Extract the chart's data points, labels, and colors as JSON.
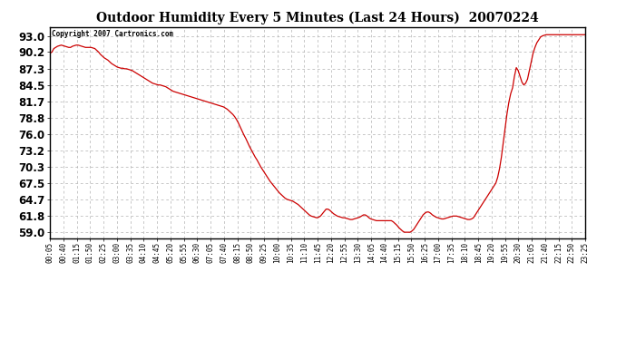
{
  "title": "Outdoor Humidity Every 5 Minutes (Last 24 Hours)  20070224",
  "copyright": "Copyright 2007 Cartronics.com",
  "line_color": "#cc0000",
  "background_color": "#ffffff",
  "grid_color": "#b0b0b0",
  "yticks": [
    59.0,
    61.8,
    64.7,
    67.5,
    70.3,
    73.2,
    76.0,
    78.8,
    81.7,
    84.5,
    87.3,
    90.2,
    93.0
  ],
  "ylim": [
    58.0,
    94.5
  ],
  "x_labels": [
    "00:05",
    "00:40",
    "01:15",
    "01:50",
    "02:25",
    "03:00",
    "03:35",
    "04:10",
    "04:45",
    "05:20",
    "05:55",
    "06:30",
    "07:05",
    "07:40",
    "08:15",
    "08:50",
    "09:25",
    "10:00",
    "10:35",
    "11:10",
    "11:45",
    "12:20",
    "12:55",
    "13:30",
    "14:05",
    "14:40",
    "15:15",
    "15:50",
    "16:25",
    "17:00",
    "17:35",
    "18:10",
    "18:45",
    "19:20",
    "19:55",
    "20:30",
    "21:05",
    "21:40",
    "22:15",
    "22:50",
    "23:25"
  ],
  "humidity_profile": [
    90.0,
    90.2,
    90.8,
    91.0,
    91.2,
    91.3,
    91.4,
    91.3,
    91.2,
    91.1,
    91.0,
    91.0,
    91.2,
    91.3,
    91.4,
    91.4,
    91.3,
    91.2,
    91.1,
    91.0,
    91.0,
    91.0,
    91.0,
    90.9,
    90.8,
    90.5,
    90.2,
    89.8,
    89.5,
    89.2,
    89.0,
    88.8,
    88.5,
    88.2,
    88.0,
    87.8,
    87.6,
    87.5,
    87.4,
    87.4,
    87.3,
    87.3,
    87.2,
    87.1,
    87.0,
    86.8,
    86.6,
    86.4,
    86.2,
    86.0,
    85.8,
    85.6,
    85.4,
    85.2,
    85.0,
    84.8,
    84.7,
    84.6,
    84.5,
    84.5,
    84.4,
    84.3,
    84.2,
    84.0,
    83.8,
    83.6,
    83.4,
    83.3,
    83.2,
    83.1,
    83.0,
    82.9,
    82.8,
    82.7,
    82.6,
    82.5,
    82.4,
    82.3,
    82.2,
    82.1,
    82.0,
    81.9,
    81.8,
    81.7,
    81.6,
    81.5,
    81.4,
    81.3,
    81.2,
    81.1,
    81.0,
    80.9,
    80.8,
    80.7,
    80.5,
    80.3,
    80.0,
    79.7,
    79.4,
    79.0,
    78.5,
    77.9,
    77.2,
    76.5,
    75.8,
    75.2,
    74.5,
    73.8,
    73.2,
    72.6,
    72.0,
    71.5,
    70.9,
    70.3,
    69.8,
    69.3,
    68.8,
    68.3,
    67.8,
    67.4,
    67.0,
    66.6,
    66.2,
    65.8,
    65.5,
    65.2,
    64.9,
    64.7,
    64.6,
    64.5,
    64.4,
    64.2,
    64.0,
    63.8,
    63.5,
    63.2,
    62.9,
    62.6,
    62.3,
    62.0,
    61.8,
    61.7,
    61.6,
    61.5,
    61.6,
    61.8,
    62.2,
    62.6,
    63.0,
    63.0,
    62.8,
    62.5,
    62.2,
    62.0,
    61.8,
    61.7,
    61.6,
    61.5,
    61.5,
    61.4,
    61.3,
    61.2,
    61.2,
    61.3,
    61.4,
    61.5,
    61.6,
    61.8,
    62.0,
    62.0,
    61.8,
    61.5,
    61.3,
    61.2,
    61.1,
    61.0,
    61.0,
    61.0,
    61.0,
    61.0,
    61.0,
    61.0,
    61.0,
    61.0,
    60.8,
    60.5,
    60.2,
    59.8,
    59.5,
    59.2,
    59.0,
    59.0,
    59.0,
    59.0,
    59.2,
    59.5,
    60.0,
    60.5,
    61.0,
    61.5,
    62.0,
    62.3,
    62.5,
    62.5,
    62.3,
    62.0,
    61.8,
    61.6,
    61.5,
    61.4,
    61.3,
    61.3,
    61.4,
    61.5,
    61.6,
    61.7,
    61.8,
    61.8,
    61.8,
    61.7,
    61.6,
    61.5,
    61.4,
    61.3,
    61.2,
    61.2,
    61.3,
    61.5,
    62.0,
    62.5,
    63.0,
    63.5,
    64.0,
    64.5,
    65.0,
    65.5,
    66.0,
    66.5,
    67.0,
    67.5,
    68.5,
    70.0,
    72.0,
    74.5,
    77.0,
    79.5,
    81.5,
    83.0,
    84.0,
    86.0,
    87.5,
    87.0,
    86.0,
    85.0,
    84.5,
    84.8,
    85.5,
    87.0,
    88.5,
    90.0,
    91.0,
    91.8,
    92.3,
    92.8,
    93.0,
    93.1,
    93.2,
    93.2,
    93.2,
    93.2,
    93.2,
    93.2,
    93.2,
    93.2,
    93.2,
    93.2,
    93.2,
    93.2,
    93.2,
    93.2,
    93.2,
    93.2,
    93.2,
    93.2,
    93.2,
    93.2,
    93.2,
    93.2
  ]
}
